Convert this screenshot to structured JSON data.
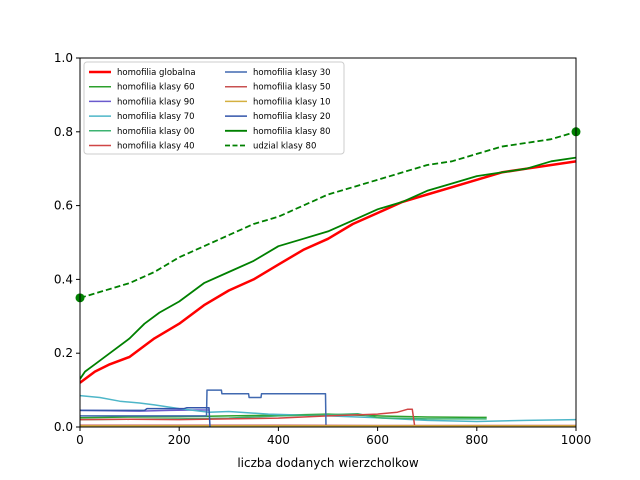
{
  "chart_data": {
    "type": "line",
    "xlabel": "liczba dodanych wierzcholkow",
    "ylabel": "",
    "xlim": [
      0,
      1000
    ],
    "ylim": [
      0,
      1.0
    ],
    "xticks": [
      0,
      200,
      400,
      600,
      800,
      1000
    ],
    "yticks": [
      0.0,
      0.2,
      0.4,
      0.6,
      0.8,
      1.0
    ],
    "xtick_labels": [
      "0",
      "200",
      "400",
      "600",
      "800",
      "1000"
    ],
    "ytick_labels": [
      "0.0",
      "0.2",
      "0.4",
      "0.6",
      "0.8",
      "1.0"
    ],
    "grid": false,
    "legend_position": "upper-left",
    "series": [
      {
        "name": "homofilia globalna",
        "color": "#ff0000",
        "linewidth": 2.5,
        "dash": "solid",
        "x": [
          0,
          10,
          30,
          60,
          100,
          130,
          150,
          200,
          250,
          300,
          350,
          400,
          450,
          500,
          550,
          600,
          650,
          700,
          750,
          800,
          850,
          900,
          950,
          1000
        ],
        "y": [
          0.12,
          0.13,
          0.15,
          0.17,
          0.19,
          0.22,
          0.24,
          0.28,
          0.33,
          0.37,
          0.4,
          0.44,
          0.48,
          0.51,
          0.55,
          0.58,
          0.61,
          0.63,
          0.65,
          0.67,
          0.69,
          0.7,
          0.71,
          0.72
        ]
      },
      {
        "name": "homofilia klasy 60",
        "color": "#2ca02c",
        "linewidth": 1.5,
        "dash": "solid",
        "x": [
          0,
          100,
          200,
          300,
          400,
          500,
          600,
          700,
          800,
          820
        ],
        "y": [
          0.025,
          0.027,
          0.028,
          0.03,
          0.032,
          0.035,
          0.03,
          0.027,
          0.026,
          0.026
        ]
      },
      {
        "name": "homofilia klasy 90",
        "color": "#6a5acd",
        "linewidth": 1.5,
        "dash": "solid",
        "x": [
          0,
          60,
          120,
          180,
          230,
          260
        ],
        "y": [
          0.045,
          0.044,
          0.043,
          0.045,
          0.046,
          0.046
        ]
      },
      {
        "name": "homofilia klasy 70",
        "color": "#4db6c8",
        "linewidth": 1.5,
        "dash": "solid",
        "x": [
          0,
          40,
          80,
          120,
          150,
          200,
          260,
          300,
          380,
          500,
          600,
          700,
          800,
          900,
          1000
        ],
        "y": [
          0.085,
          0.08,
          0.07,
          0.065,
          0.06,
          0.05,
          0.04,
          0.042,
          0.035,
          0.03,
          0.025,
          0.018,
          0.015,
          0.018,
          0.02
        ]
      },
      {
        "name": "homofilia klasy 00",
        "color": "#3cb371",
        "linewidth": 1.5,
        "dash": "solid",
        "x": [
          0,
          100,
          200,
          300,
          400,
          500,
          560,
          600,
          700,
          800,
          820
        ],
        "y": [
          0.02,
          0.021,
          0.022,
          0.024,
          0.03,
          0.033,
          0.036,
          0.025,
          0.022,
          0.022,
          0.022
        ]
      },
      {
        "name": "homofilia klasy 40",
        "color": "#d04545",
        "linewidth": 1.5,
        "dash": "solid",
        "x": [
          0,
          100,
          200,
          300,
          400,
          500,
          600,
          640,
          660,
          670,
          675
        ],
        "y": [
          0.02,
          0.021,
          0.02,
          0.022,
          0.024,
          0.03,
          0.035,
          0.04,
          0.048,
          0.048,
          0.0
        ]
      },
      {
        "name": "homofilia klasy 30",
        "color": "#4169b0",
        "linewidth": 1.5,
        "dash": "solid",
        "x": [
          0,
          255,
          256,
          285,
          286,
          340,
          341,
          365,
          366,
          495,
          496
        ],
        "y": [
          0.03,
          0.03,
          0.1,
          0.1,
          0.09,
          0.09,
          0.08,
          0.08,
          0.09,
          0.09,
          0.0
        ]
      },
      {
        "name": "homofilia klasy 50",
        "color": "#c85050",
        "linewidth": 1.5,
        "dash": "solid",
        "x": [
          0,
          200,
          400,
          600,
          800,
          1000
        ],
        "y": [
          0.005,
          0.005,
          0.005,
          0.004,
          0.004,
          0.004
        ]
      },
      {
        "name": "homofilia klasy 10",
        "color": "#d4b040",
        "linewidth": 1.5,
        "dash": "solid",
        "x": [
          0,
          200,
          400,
          600,
          800,
          1000
        ],
        "y": [
          0.003,
          0.003,
          0.003,
          0.003,
          0.003,
          0.003
        ]
      },
      {
        "name": "homofilia klasy 20",
        "color": "#3355aa",
        "linewidth": 1.5,
        "dash": "solid",
        "x": [
          0,
          130,
          135,
          210,
          215,
          260,
          262
        ],
        "y": [
          0.045,
          0.045,
          0.05,
          0.05,
          0.052,
          0.052,
          0.0
        ]
      },
      {
        "name": "homofilia klasy 80",
        "color": "#008000",
        "linewidth": 1.8,
        "dash": "solid",
        "x": [
          0,
          10,
          30,
          60,
          100,
          130,
          160,
          200,
          250,
          300,
          350,
          400,
          450,
          500,
          550,
          600,
          650,
          700,
          750,
          800,
          850,
          900,
          950,
          1000
        ],
        "y": [
          0.13,
          0.15,
          0.17,
          0.2,
          0.24,
          0.28,
          0.31,
          0.34,
          0.39,
          0.42,
          0.45,
          0.49,
          0.51,
          0.53,
          0.56,
          0.59,
          0.61,
          0.64,
          0.66,
          0.68,
          0.69,
          0.7,
          0.72,
          0.73
        ]
      },
      {
        "name": "udzial klasy 80",
        "color": "#008000",
        "linewidth": 1.8,
        "dash": "dashed",
        "x": [
          0,
          50,
          100,
          150,
          200,
          250,
          300,
          350,
          400,
          450,
          500,
          550,
          600,
          650,
          700,
          750,
          800,
          850,
          900,
          950,
          1000
        ],
        "y": [
          0.35,
          0.37,
          0.39,
          0.42,
          0.46,
          0.49,
          0.52,
          0.55,
          0.57,
          0.6,
          0.63,
          0.65,
          0.67,
          0.69,
          0.71,
          0.72,
          0.74,
          0.76,
          0.77,
          0.78,
          0.8
        ],
        "endpoint_markers": true
      }
    ]
  }
}
